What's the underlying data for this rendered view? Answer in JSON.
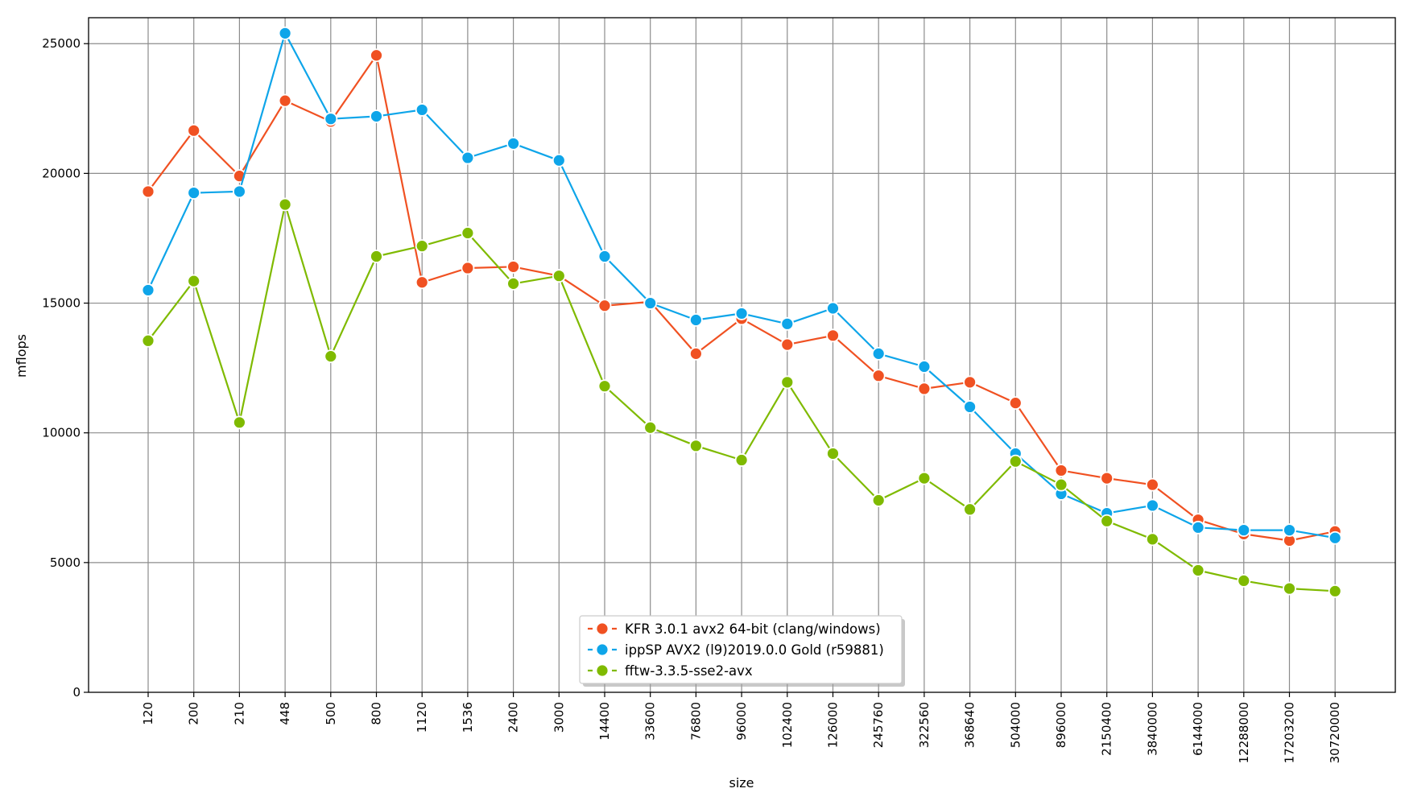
{
  "chart_data": {
    "type": "line",
    "title": "",
    "xlabel": "size",
    "ylabel": "mflops",
    "ylim": [
      0,
      26000
    ],
    "yticks": [
      0,
      5000,
      10000,
      15000,
      20000,
      25000
    ],
    "grid": true,
    "legend_position": "bottom-center",
    "categories": [
      "120",
      "200",
      "210",
      "448",
      "500",
      "800",
      "1120",
      "1536",
      "2400",
      "3000",
      "14400",
      "33600",
      "76800",
      "96000",
      "102400",
      "126000",
      "245760",
      "322560",
      "368640",
      "504000",
      "896000",
      "2150400",
      "3840000",
      "6144000",
      "12288000",
      "17203200",
      "30720000"
    ],
    "series": [
      {
        "name": "KFR 3.0.1 avx2 64-bit (clang/windows)",
        "color": "#f05122",
        "values": [
          19300,
          21650,
          19900,
          22800,
          22000,
          24550,
          15800,
          16350,
          16400,
          16050,
          14900,
          15050,
          13050,
          14400,
          13400,
          13750,
          12200,
          11700,
          11950,
          11150,
          8550,
          8250,
          8000,
          6650,
          6100,
          5850,
          6200
        ]
      },
      {
        "name": "ippSP AVX2 (l9)2019.0.0 Gold (r59881)",
        "color": "#0ea5e9",
        "values": [
          15500,
          19250,
          19300,
          25400,
          22100,
          22200,
          22450,
          20600,
          21150,
          20500,
          16800,
          15000,
          14350,
          14600,
          14200,
          14800,
          13050,
          12550,
          11000,
          9200,
          7650,
          6900,
          7200,
          6350,
          6250,
          6250,
          5950
        ]
      },
      {
        "name": "fftw-3.3.5-sse2-avx",
        "color": "#7fba00",
        "values": [
          13550,
          15850,
          10400,
          18800,
          12950,
          16800,
          17200,
          17700,
          15750,
          16050,
          11800,
          10200,
          9500,
          8950,
          11950,
          9200,
          7400,
          8250,
          7050,
          8900,
          8000,
          6600,
          5900,
          4700,
          4300,
          4000,
          3900
        ]
      }
    ]
  }
}
